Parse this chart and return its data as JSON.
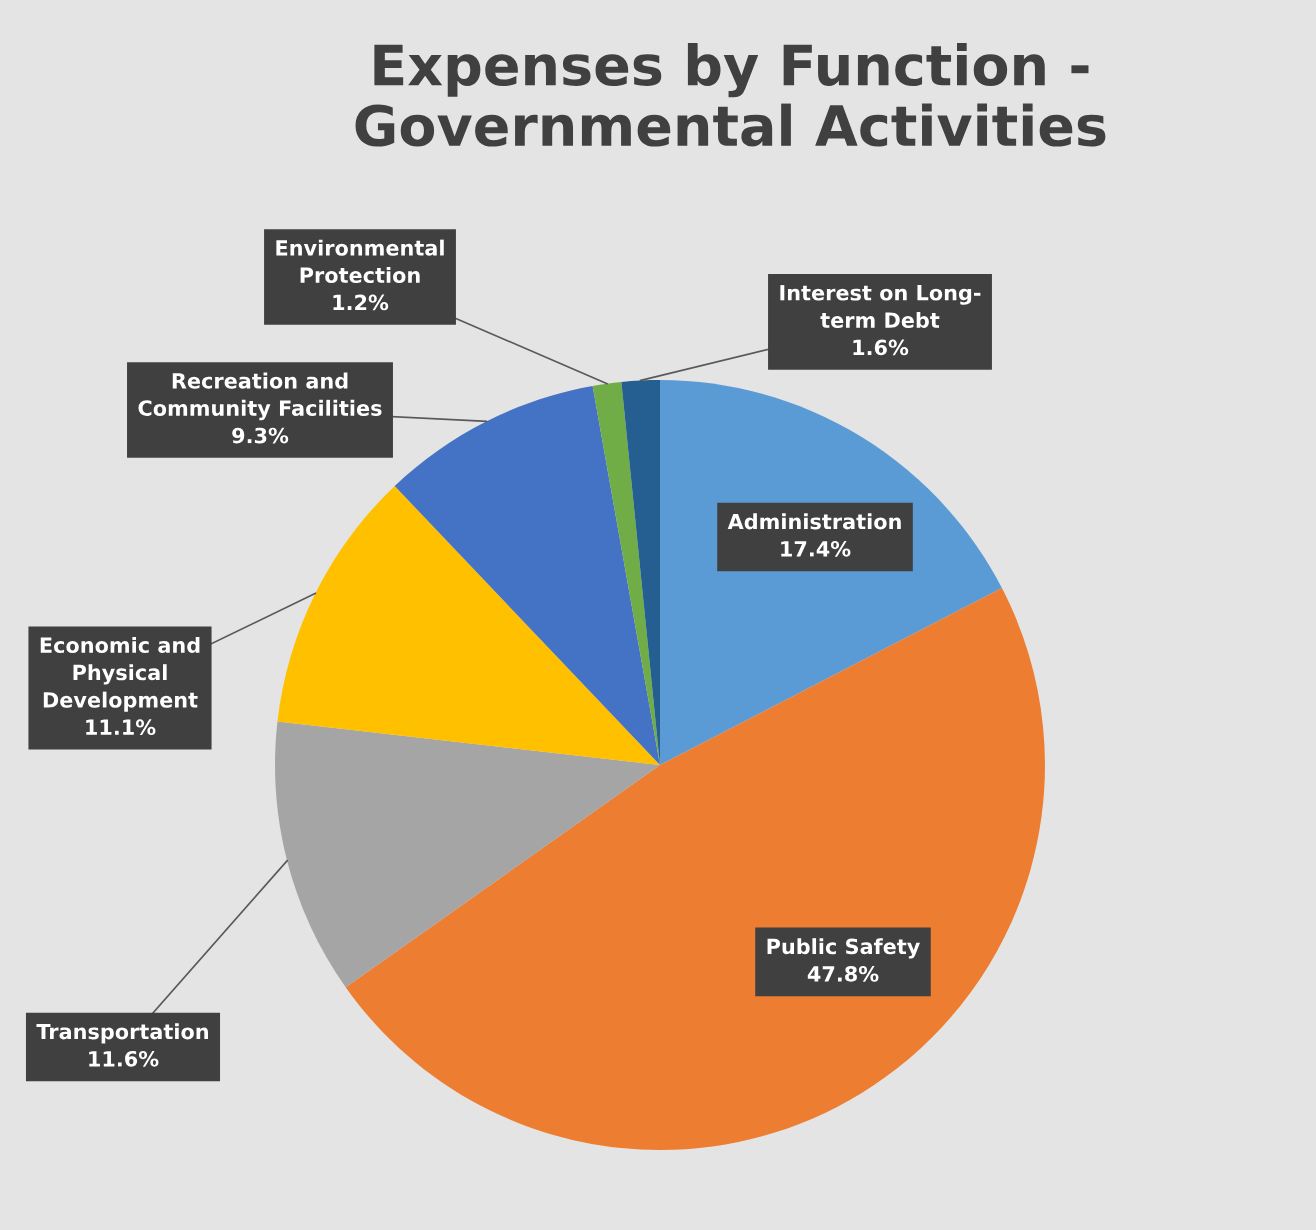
{
  "chart_data": {
    "type": "pie",
    "title": "Expenses by Function -\nGovernmental Activities",
    "categories": [
      "Administration",
      "Public Safety",
      "Transportation",
      "Economic and\nPhysical\nDevelopment",
      "Recreation and\nCommunity Facilities",
      "Environmental\nProtection",
      "Interest on Long-\nterm Debt"
    ],
    "values": [
      17.4,
      47.8,
      11.6,
      11.1,
      9.3,
      1.2,
      1.6
    ],
    "value_labels": [
      "17.4%",
      "47.8%",
      "11.6%",
      "11.1%",
      "9.3%",
      "1.2%",
      "1.6%"
    ],
    "colors": [
      "#5b9bd5",
      "#ed7d31",
      "#a5a5a5",
      "#ffc000",
      "#4472c4",
      "#70ad47",
      "#255e91"
    ],
    "legend": false
  }
}
